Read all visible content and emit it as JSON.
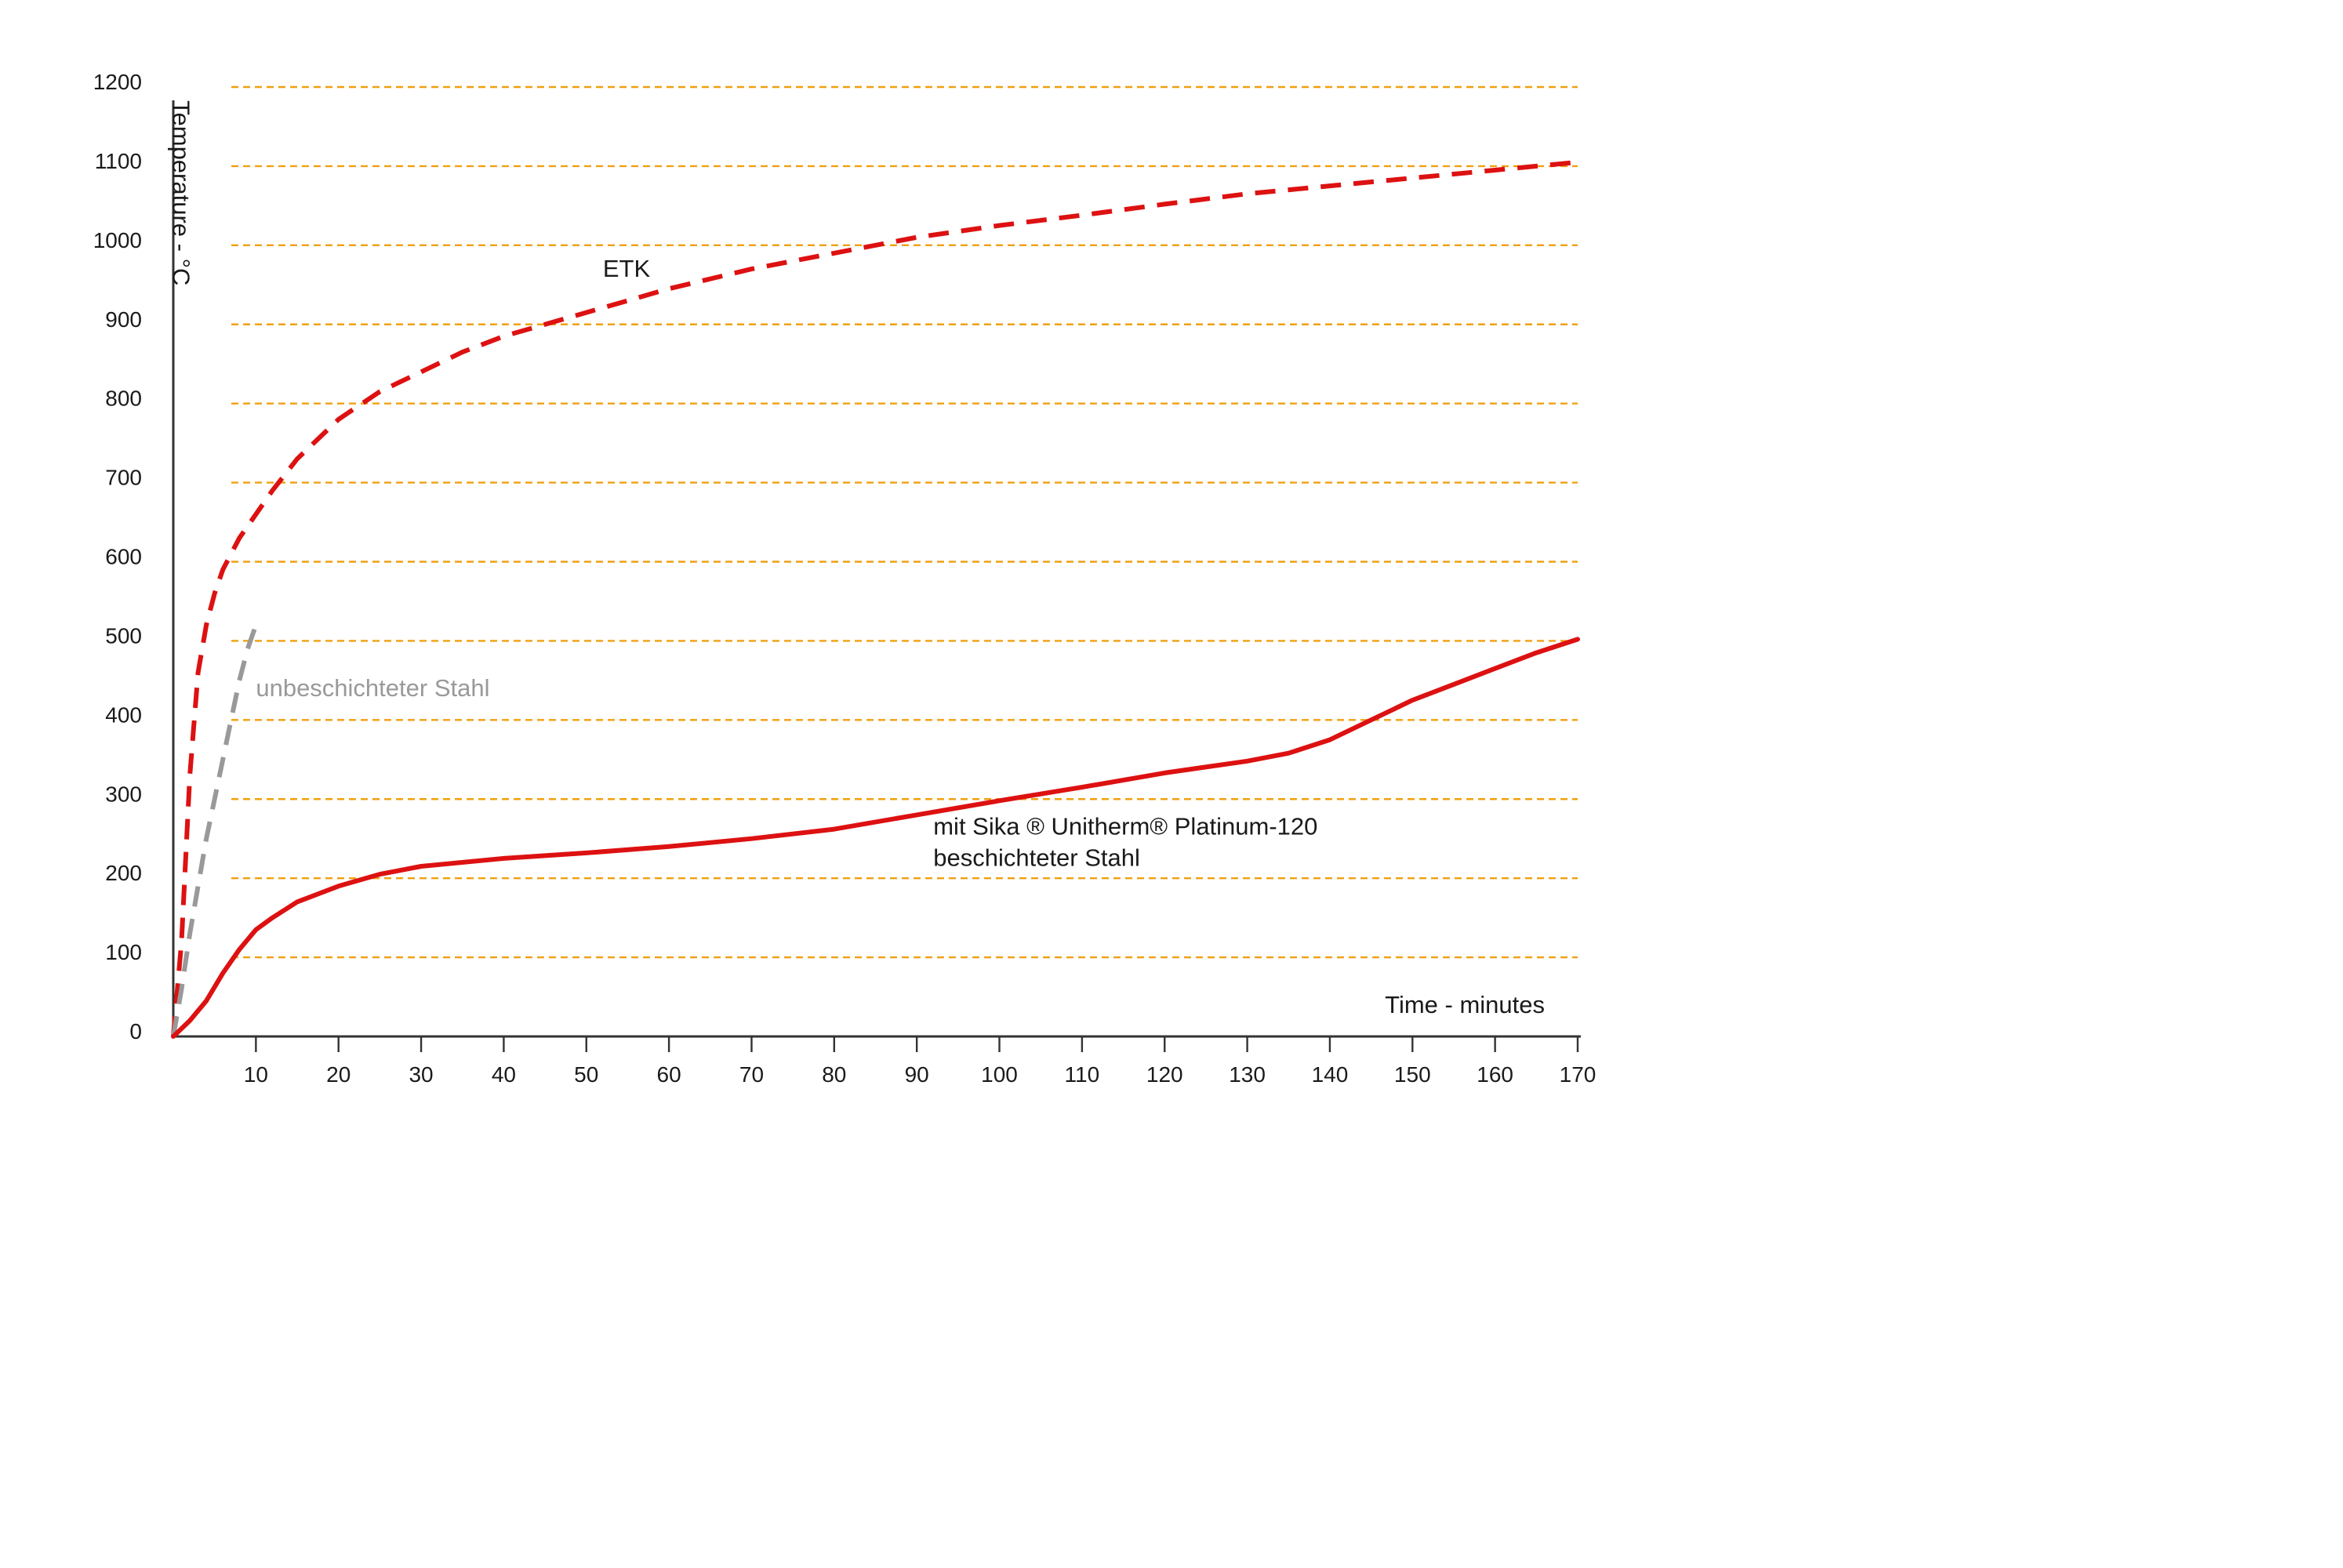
{
  "chart_data": {
    "type": "line",
    "xlabel": "Time - minutes",
    "ylabel": "Temperature - °C",
    "xlim": [
      0,
      170
    ],
    "ylim": [
      0,
      1200
    ],
    "x_ticks": [
      10,
      20,
      30,
      40,
      50,
      60,
      70,
      80,
      90,
      100,
      110,
      120,
      130,
      140,
      150,
      160,
      170
    ],
    "y_ticks": [
      0,
      100,
      200,
      300,
      400,
      500,
      600,
      700,
      800,
      900,
      1000,
      1100,
      1200
    ],
    "grid": "horizontal dashed",
    "grid_color": "#f0a010",
    "axis_color": "#333333",
    "series": [
      {
        "name": "ETK",
        "label_lines": [
          "ETK"
        ],
        "color": "#dd1111",
        "text_color": "#1a1a1a",
        "style": "dashed",
        "label_at": [
          52,
          960
        ],
        "points": [
          [
            0,
            0
          ],
          [
            1,
            120
          ],
          [
            2,
            330
          ],
          [
            3,
            460
          ],
          [
            4,
            520
          ],
          [
            5,
            560
          ],
          [
            6,
            590
          ],
          [
            7,
            610
          ],
          [
            8,
            630
          ],
          [
            10,
            660
          ],
          [
            12,
            690
          ],
          [
            15,
            730
          ],
          [
            20,
            780
          ],
          [
            25,
            815
          ],
          [
            30,
            840
          ],
          [
            35,
            865
          ],
          [
            40,
            885
          ],
          [
            45,
            900
          ],
          [
            50,
            915
          ],
          [
            55,
            930
          ],
          [
            60,
            945
          ],
          [
            70,
            970
          ],
          [
            80,
            990
          ],
          [
            90,
            1010
          ],
          [
            100,
            1025
          ],
          [
            110,
            1038
          ],
          [
            120,
            1052
          ],
          [
            130,
            1065
          ],
          [
            140,
            1075
          ],
          [
            150,
            1085
          ],
          [
            160,
            1095
          ],
          [
            170,
            1105
          ]
        ]
      },
      {
        "name": "unbeschichteter Stahl",
        "label_lines": [
          "unbeschichteter Stahl"
        ],
        "color": "#999999",
        "text_color": "#999999",
        "style": "dashed",
        "label_at": [
          10,
          430
        ],
        "points": [
          [
            0,
            0
          ],
          [
            1,
            60
          ],
          [
            2,
            130
          ],
          [
            3,
            190
          ],
          [
            4,
            250
          ],
          [
            5,
            300
          ],
          [
            6,
            350
          ],
          [
            7,
            400
          ],
          [
            8,
            450
          ],
          [
            9,
            490
          ],
          [
            10,
            520
          ]
        ]
      },
      {
        "name": "mit Sika ® Unitherm® Platinum-120 beschichteter Stahl",
        "label_lines": [
          "mit Sika ® Unitherm® Platinum-120",
          "beschichteter Stahl"
        ],
        "color": "#dd1111",
        "text_color": "#1a1a1a",
        "style": "solid",
        "label_at": [
          92,
          255
        ],
        "points": [
          [
            0,
            0
          ],
          [
            2,
            20
          ],
          [
            4,
            45
          ],
          [
            6,
            80
          ],
          [
            8,
            110
          ],
          [
            10,
            135
          ],
          [
            12,
            150
          ],
          [
            15,
            170
          ],
          [
            20,
            190
          ],
          [
            25,
            205
          ],
          [
            30,
            215
          ],
          [
            40,
            225
          ],
          [
            50,
            232
          ],
          [
            60,
            240
          ],
          [
            70,
            250
          ],
          [
            80,
            262
          ],
          [
            90,
            280
          ],
          [
            100,
            298
          ],
          [
            110,
            315
          ],
          [
            120,
            333
          ],
          [
            130,
            348
          ],
          [
            135,
            358
          ],
          [
            140,
            375
          ],
          [
            145,
            400
          ],
          [
            150,
            425
          ],
          [
            155,
            445
          ],
          [
            160,
            465
          ],
          [
            165,
            485
          ],
          [
            170,
            502
          ]
        ]
      }
    ]
  }
}
